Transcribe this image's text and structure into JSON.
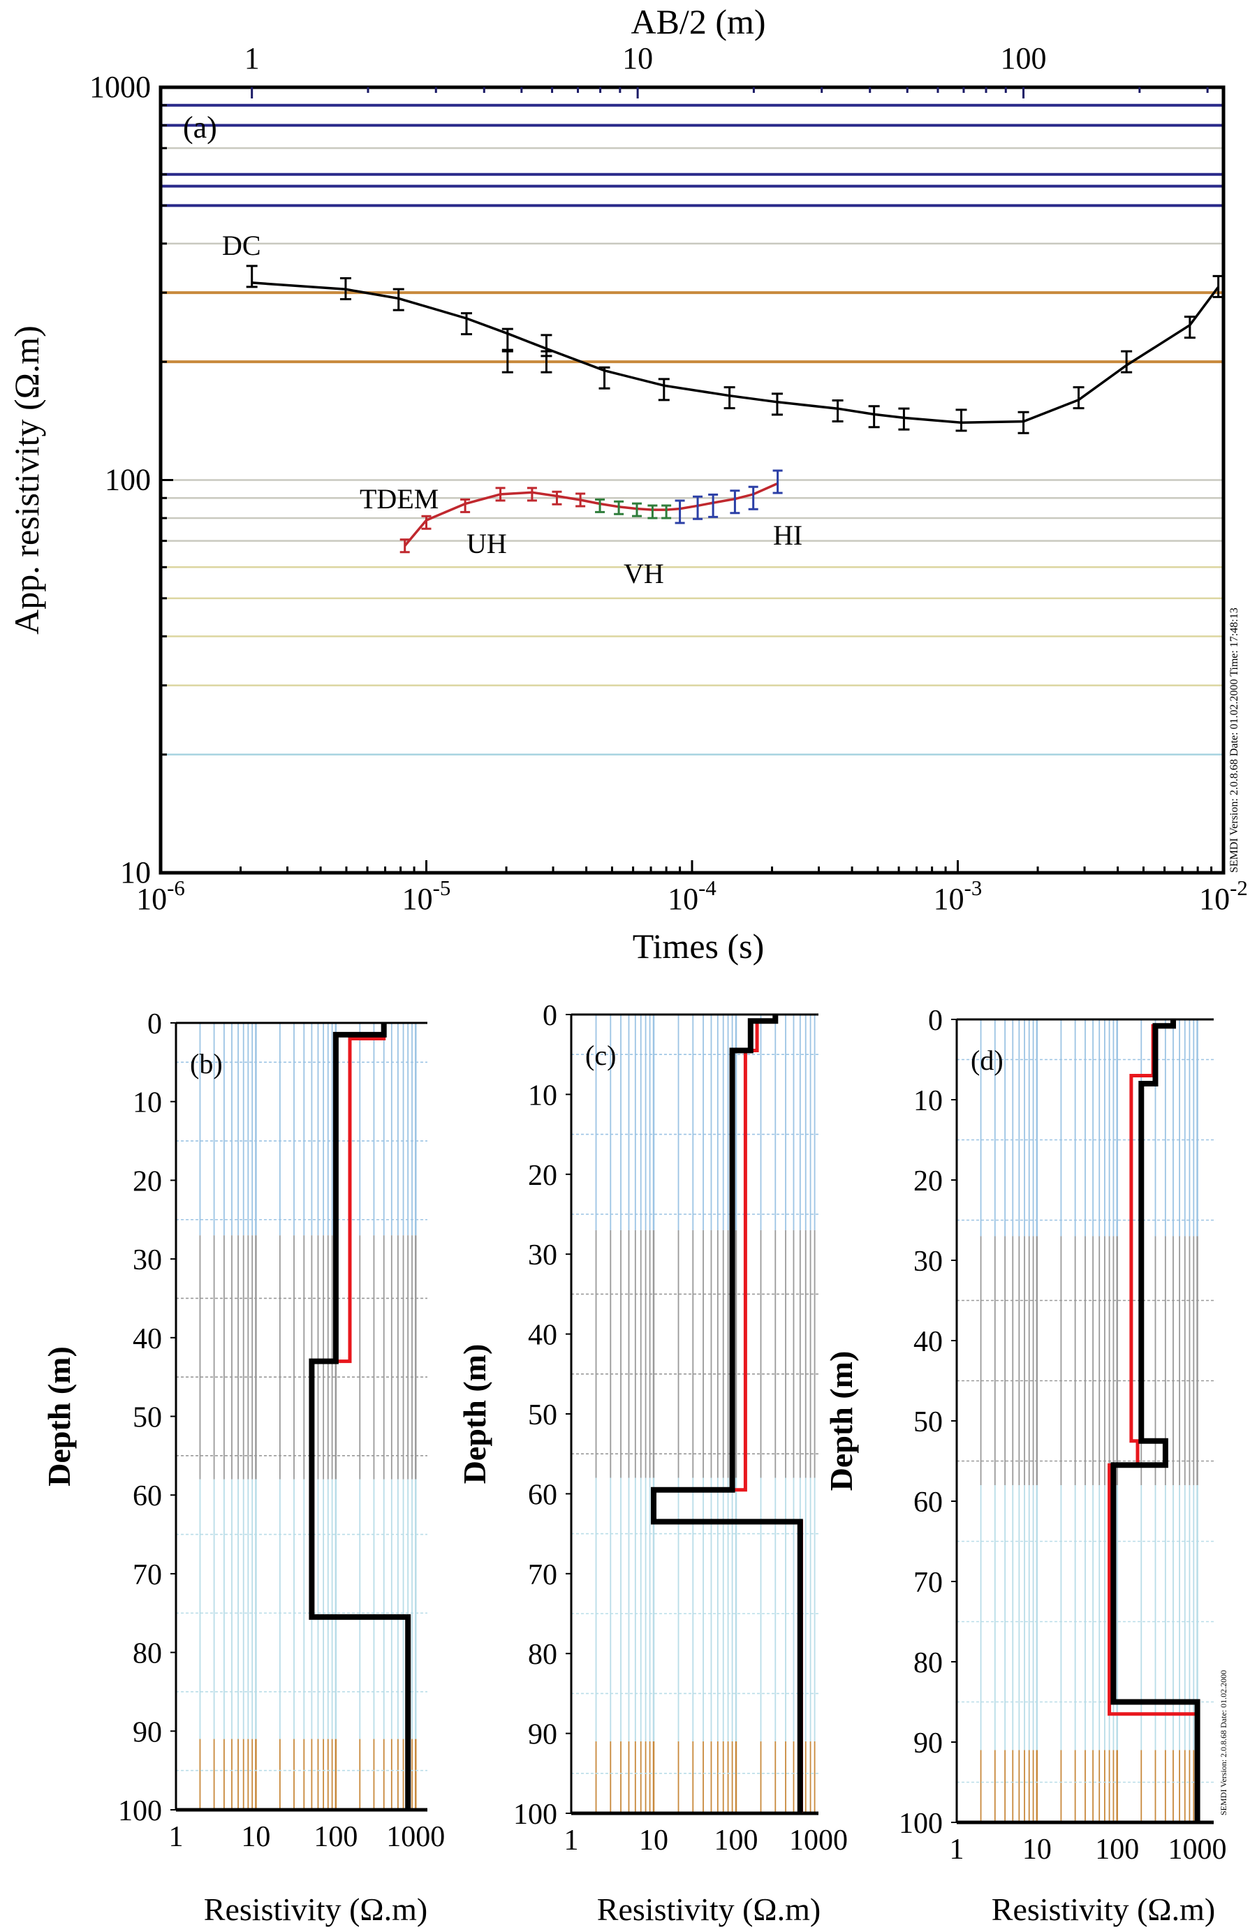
{
  "watermark": "SEMDI Version: 2.0.8.68 Date: 01.02.2000 Time: 17:48:13",
  "colors": {
    "dc": "#000000",
    "uh": "#c0282e",
    "vh": "#2f7d3a",
    "hi": "#2b3fa6",
    "model_dc": "#000000",
    "model_tem": "#e8171d",
    "grid_blue": "#9cc4e4",
    "grid_gray": "#9a9a9a",
    "grid_cyan": "#b9dde8",
    "grid_orange": "#c8893c",
    "hline_navy": "#2a2a8a",
    "hline_orange": "#c8893c",
    "hline_gray": "#c9c9bf",
    "hline_olive": "#dcd6a0",
    "hline_cyan": "#a7d3e0"
  },
  "chart_data": [
    {
      "type": "line",
      "panel_label": "(a)",
      "title": "",
      "xlabel": "Times (s)",
      "x2label": "AB/2 (m)",
      "ylabel": "App. resistivity (Ω.m)",
      "xscale": "log",
      "yscale": "log",
      "xlim": [
        1e-06,
        0.01
      ],
      "x2lim": [
        0.58,
        330
      ],
      "ylim": [
        10,
        1000
      ],
      "xticks": [
        "10-6",
        "10-5",
        "10-4",
        "10-3",
        "10-2"
      ],
      "x2ticks": [
        "1",
        "10",
        "100"
      ],
      "yticks": [
        "10",
        "100",
        "1000"
      ],
      "hlines_navy": [
        900,
        800,
        600,
        560,
        500
      ],
      "hlines_orange": [
        300,
        200
      ],
      "hlines_gray": [
        700,
        400,
        100,
        90,
        80,
        70
      ],
      "hlines_olive": [
        60,
        50,
        40,
        30
      ],
      "hlines_cyan": [
        20
      ],
      "series": [
        {
          "name": "DC",
          "x_axis": "AB/2 (m)",
          "x": [
            1,
            1.75,
            2.4,
            3.6,
            4.6,
            4.6,
            5.8,
            5.8,
            8.2,
            11.7,
            17.3,
            23,
            33,
            41,
            49,
            69,
            100,
            139,
            185,
            270,
            320
          ],
          "y": [
            330,
            307,
            288,
            250,
            228,
            200,
            220,
            200,
            182,
            170,
            162,
            156,
            150,
            145,
            143,
            142,
            140,
            162,
            200,
            245,
            311
          ],
          "curve_x": [
            1,
            1.75,
            2.4,
            3.6,
            4.6,
            5.8,
            8.2,
            11.7,
            17.3,
            23,
            33,
            41,
            49,
            69,
            100,
            139,
            185,
            270,
            320
          ],
          "curve_y": [
            318,
            306,
            290,
            258,
            236,
            216,
            190,
            174,
            164,
            158,
            152,
            147,
            144,
            140,
            141,
            160,
            196,
            248,
            310
          ]
        },
        {
          "name": "UH",
          "x": [
            8.3e-06,
            1e-05,
            1.4e-05,
            1.9e-05,
            2.5e-05,
            3.1e-05,
            3.8e-05
          ],
          "y": [
            68,
            78,
            86,
            92,
            92,
            90,
            89
          ]
        },
        {
          "name": "VH",
          "x": [
            4.5e-05,
            5.3e-05,
            6.2e-05,
            7.1e-05,
            8e-05
          ],
          "y": [
            86,
            85,
            84,
            83,
            83
          ]
        },
        {
          "name": "HI",
          "x": [
            9e-05,
            0.000105,
            0.00012,
            0.000145,
            0.00017,
            0.00021
          ],
          "y": [
            83,
            85,
            86,
            88,
            90,
            99
          ]
        }
      ],
      "tdem_curve_x": [
        8.3e-06,
        1e-05,
        1.4e-05,
        1.9e-05,
        2.5e-05,
        3.1e-05,
        3.8e-05,
        4.5e-05,
        5.3e-05,
        6.2e-05,
        7.1e-05,
        8e-05,
        9e-05,
        0.000105,
        0.00012,
        0.000145,
        0.00017,
        0.00021
      ],
      "tdem_curve_y": [
        68,
        79,
        87,
        92,
        93,
        91,
        89,
        87,
        85.5,
        84.5,
        84,
        84,
        84.5,
        86,
        87.5,
        89.5,
        92,
        98
      ],
      "annotations": [
        "DC",
        "TDEM",
        "UH",
        "VH",
        "HI"
      ]
    },
    {
      "type": "line",
      "panel_label": "(b)",
      "xlabel": "Resistivity (Ω.m)",
      "ylabel": "Depth (m)",
      "xscale": "log",
      "xlim": [
        1,
        1400
      ],
      "ylim": [
        0,
        100
      ],
      "xticks": [
        "1",
        "10",
        "100",
        "1000"
      ],
      "yticks": [
        "0",
        "10",
        "20",
        "30",
        "40",
        "50",
        "60",
        "70",
        "80",
        "90",
        "100"
      ],
      "series": [
        {
          "name": "DC model",
          "resistivity": [
            400,
            100,
            50,
            800
          ],
          "depth_top": [
            0,
            1.5,
            43,
            75.5
          ]
        },
        {
          "name": "TDEM model",
          "resistivity": [
            400,
            150,
            50,
            800
          ],
          "depth_top": [
            0,
            2,
            43,
            75.5
          ]
        }
      ]
    },
    {
      "type": "line",
      "panel_label": "(c)",
      "xlabel": "Resistivity (Ω.m)",
      "ylabel": "Depth (m)",
      "xscale": "log",
      "xlim": [
        1,
        1000
      ],
      "ylim": [
        0,
        100
      ],
      "xticks": [
        "1",
        "10",
        "100",
        "1000"
      ],
      "yticks": [
        "0",
        "10",
        "20",
        "30",
        "40",
        "50",
        "60",
        "70",
        "80",
        "90",
        "100"
      ],
      "series": [
        {
          "name": "DC model",
          "resistivity": [
            300,
            150,
            90,
            10,
            600
          ],
          "depth_top": [
            0,
            0.8,
            4.5,
            59.5,
            63.5
          ]
        },
        {
          "name": "TDEM model",
          "resistivity": [
            300,
            180,
            130,
            10,
            620
          ],
          "depth_top": [
            0,
            0.8,
            4.5,
            59.5,
            63.5
          ]
        }
      ]
    },
    {
      "type": "line",
      "panel_label": "(d)",
      "xlabel": "Resistivity (Ω.m)",
      "ylabel": "Depth (m)",
      "xscale": "log",
      "xlim": [
        1,
        1600
      ],
      "ylim": [
        0,
        100
      ],
      "xticks": [
        "1",
        "10",
        "100",
        "1000"
      ],
      "yticks": [
        "0",
        "10",
        "20",
        "30",
        "40",
        "50",
        "60",
        "70",
        "80",
        "90",
        "100"
      ],
      "watermark": "SEMDI Version: 2.0.8.68 Date: 01.02.2000",
      "series": [
        {
          "name": "DC model",
          "resistivity": [
            500,
            300,
            200,
            400,
            90,
            1000
          ],
          "depth_top": [
            0,
            0.8,
            8,
            52.5,
            55.5,
            85
          ]
        },
        {
          "name": "TDEM model",
          "resistivity": [
            500,
            280,
            150,
            180,
            80,
            1000
          ],
          "depth_top": [
            0,
            0.8,
            7,
            52.5,
            55.5,
            86.5
          ]
        }
      ]
    }
  ]
}
